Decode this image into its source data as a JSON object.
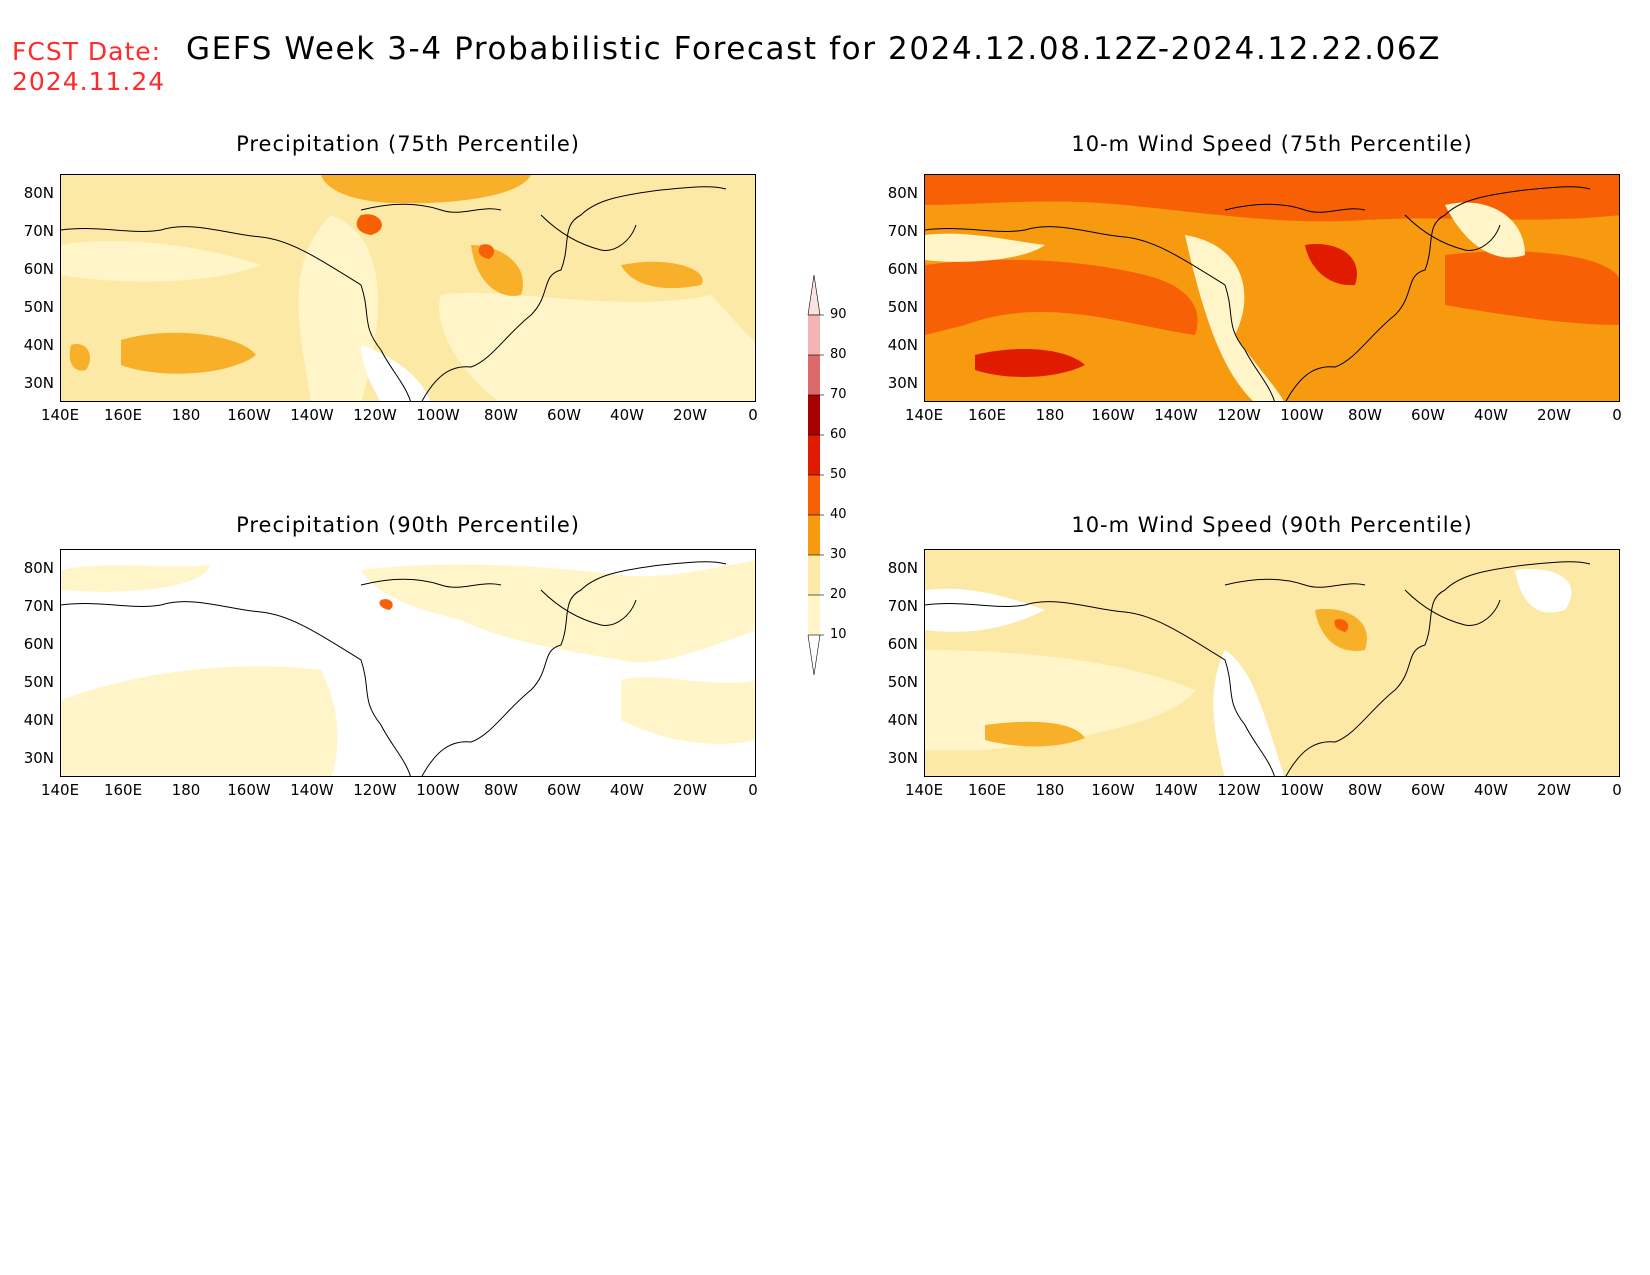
{
  "header": {
    "fcst_label": "FCST Date:",
    "fcst_date": "2024.11.24",
    "title": "GEFS Week 3-4 Probabilistic Forecast for 2024.12.08.12Z-2024.12.22.06Z"
  },
  "axes": {
    "lat_ticks": [
      "80N",
      "70N",
      "60N",
      "50N",
      "40N",
      "30N"
    ],
    "lon_ticks": [
      "140E",
      "160E",
      "180",
      "160W",
      "140W",
      "120W",
      "100W",
      "80W",
      "60W",
      "40W",
      "20W",
      "0"
    ]
  },
  "panels": [
    {
      "id": "precip-75",
      "title": "Precipitation (75th Percentile)",
      "base_color": "#fde9a6"
    },
    {
      "id": "wind-75",
      "title": "10-m Wind Speed (75th Percentile)",
      "base_color": "#f79a10"
    },
    {
      "id": "precip-90",
      "title": "Precipitation (90th Percentile)",
      "base_color": "#fff5c8"
    },
    {
      "id": "wind-90",
      "title": "10-m Wind Speed (90th Percentile)",
      "base_color": "#fde9a6"
    }
  ],
  "colorbar": {
    "labels": [
      "90",
      "80",
      "70",
      "60",
      "50",
      "40",
      "30",
      "20",
      "10"
    ],
    "colors": [
      "#f3b4b4",
      "#dd6a6a",
      "#a60000",
      "#e01b00",
      "#f86006",
      "#f79a10",
      "#fde9a6",
      "#fff5c8"
    ]
  }
}
